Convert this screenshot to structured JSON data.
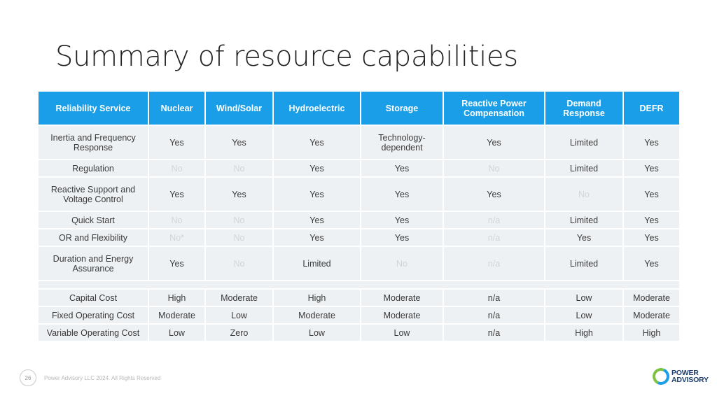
{
  "title": "Summary of resource capabilities",
  "table": {
    "headers": [
      "Reliability Service",
      "Nuclear",
      "Wind/Solar",
      "Hydroelectric",
      "Storage",
      "Reactive Power Compensation",
      "Demand Response",
      "DEFR"
    ],
    "rows_a": [
      [
        "Inertia and Frequency Response",
        "Yes",
        "Yes",
        "Yes",
        "Technology-dependent",
        "Yes",
        "Limited",
        "Yes"
      ],
      [
        "Regulation",
        "No",
        "No",
        "Yes",
        "Yes",
        "No",
        "Limited",
        "Yes"
      ],
      [
        "Reactive Support and Voltage Control",
        "Yes",
        "Yes",
        "Yes",
        "Yes",
        "Yes",
        "No",
        "Yes"
      ],
      [
        "Quick Start",
        "No",
        "No",
        "Yes",
        "Yes",
        "n/a",
        "Limited",
        "Yes"
      ],
      [
        "OR and Flexibility",
        "No*",
        "No",
        "Yes",
        "Yes",
        "n/a",
        "Yes",
        "Yes"
      ],
      [
        "Duration and Energy Assurance",
        "Yes",
        "No",
        "Limited",
        "No",
        "n/a",
        "Limited",
        "Yes"
      ]
    ],
    "rows_b": [
      [
        "Capital Cost",
        "High",
        "Moderate",
        "High",
        "Moderate",
        "n/a",
        "Low",
        "Moderate"
      ],
      [
        "Fixed Operating Cost",
        "Moderate",
        "Low",
        "Moderate",
        "Moderate",
        "n/a",
        "Low",
        "Moderate"
      ],
      [
        "Variable Operating Cost",
        "Low",
        "Zero",
        "Low",
        "Low",
        "n/a",
        "High",
        "High"
      ]
    ]
  },
  "footer": {
    "page_number": "26",
    "copyright": "Power Advisory LLC 2024. All Rights Reserved"
  },
  "logo": {
    "line1": "POWER",
    "line2": "ADVISORY"
  },
  "colors": {
    "header_bg": "#1a9ee8",
    "cell_bg": "#eef1f4",
    "faded_text": "#cfd5da"
  }
}
